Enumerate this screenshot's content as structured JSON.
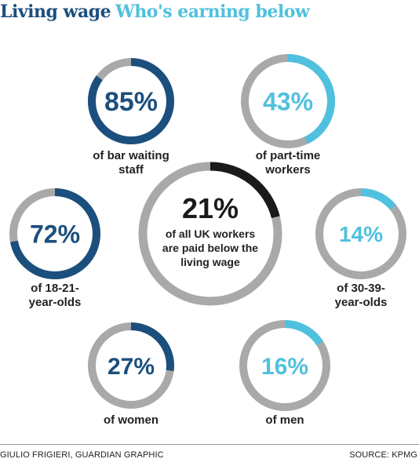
{
  "title": {
    "main": "Living wage",
    "sub": "Who's earning below"
  },
  "credit": "GIULIO FRIGIERI, GUARDIAN GRAPHIC",
  "source": "SOURCE: KPMG",
  "colors": {
    "dark_blue": "#1b4f7d",
    "light_blue": "#4fc1de",
    "black": "#1a1a1a",
    "track_gray": "#a9a9a9"
  },
  "chart_data": {
    "type": "donut",
    "title": "Living wage Who's earning below",
    "items": [
      {
        "value": 85,
        "label": "85%",
        "caption": [
          "of bar waiting",
          "staff"
        ],
        "color": "dark_blue"
      },
      {
        "value": 43,
        "label": "43%",
        "caption": [
          "of part-time",
          "workers"
        ],
        "color": "light_blue"
      },
      {
        "value": 72,
        "label": "72%",
        "caption": [
          "of 18-21-",
          "year-olds"
        ],
        "color": "dark_blue"
      },
      {
        "value": 21,
        "label": "21%",
        "caption": [
          "of all UK workers",
          "are paid below the",
          "living wage"
        ],
        "color": "black",
        "center": true
      },
      {
        "value": 14,
        "label": "14%",
        "caption": [
          "of 30-39-",
          "year-olds"
        ],
        "color": "light_blue"
      },
      {
        "value": 27,
        "label": "27%",
        "caption": [
          "of women"
        ],
        "color": "dark_blue"
      },
      {
        "value": 16,
        "label": "16%",
        "caption": [
          "of men"
        ],
        "color": "light_blue"
      }
    ]
  }
}
